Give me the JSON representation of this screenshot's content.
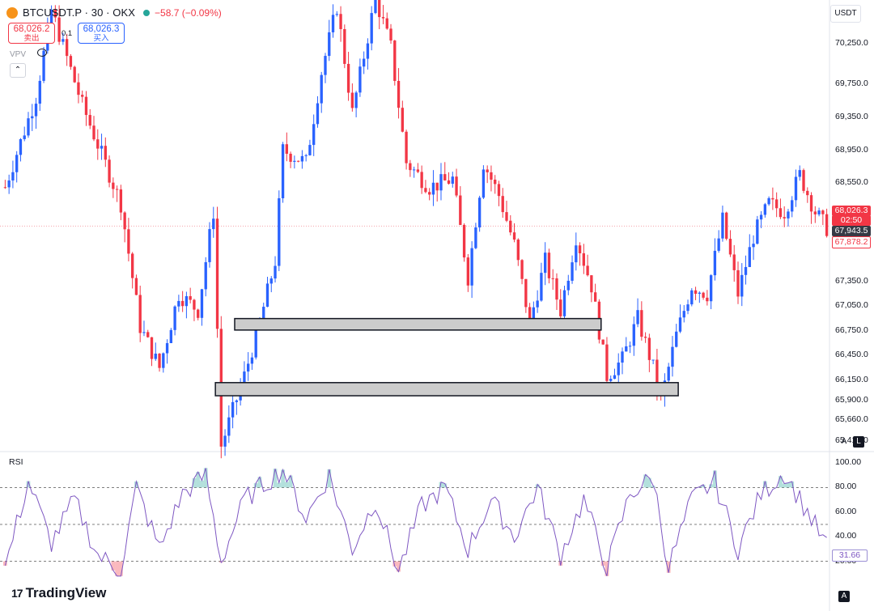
{
  "header": {
    "symbol": "BTCUSDT.P",
    "interval": "30",
    "exchange": "OKX",
    "title_text": "BTCUSDT.P · 30 · OKX",
    "change": "−58.7 (−0.09%)"
  },
  "trade": {
    "sell_price": "68,026.2",
    "sell_label": "卖出",
    "spread": "0.1",
    "buy_price": "68,026.3",
    "buy_label": "买入"
  },
  "indicator_label": "VPV",
  "currency_button": "USDT",
  "price_axis": [
    "70,250.0",
    "69,750.0",
    "69,350.0",
    "68,950.0",
    "68,550.0",
    "67,350.0",
    "67,050.0",
    "66,750.0",
    "66,450.0",
    "66,150.0",
    "65,900.0",
    "65,660.0",
    "65,410.0"
  ],
  "price_tags": {
    "last": "68,026.3",
    "countdown": "02:50",
    "mark": "67,943.5",
    "low": "67,878.2"
  },
  "rsi": {
    "title": "RSI",
    "axis": [
      "100.00",
      "80.00",
      "60.00",
      "40.00",
      "20.00"
    ],
    "value": "31.66",
    "upper_band": 80,
    "middle_band": 50,
    "lower_band": 20
  },
  "buttons": {
    "auto": "A",
    "log": "L"
  },
  "branding": {
    "logo_text": "TradingView"
  },
  "colors": {
    "up": "#2962ff",
    "down": "#f23645",
    "rsi_line": "#7e57c2",
    "zone_fill": "#cccccc"
  },
  "chart_data": {
    "type": "candlestick",
    "y_range": [
      65300,
      70700
    ],
    "price_levels": {
      "last_price": 68026.3,
      "mark_price": 67943.5
    },
    "zones": [
      {
        "from_index": 60,
        "to_index": 155,
        "price_top": 66900,
        "price_bottom": 66760
      },
      {
        "from_index": 55,
        "to_index": 175,
        "price_top": 66120,
        "price_bottom": 65960
      }
    ],
    "series_shape": [
      [
        0,
        68500
      ],
      [
        8,
        69600
      ],
      [
        12,
        70650
      ],
      [
        20,
        69500
      ],
      [
        30,
        68300
      ],
      [
        35,
        66800
      ],
      [
        40,
        66300
      ],
      [
        45,
        67200
      ],
      [
        50,
        67000
      ],
      [
        54,
        68200
      ],
      [
        56,
        65350
      ],
      [
        62,
        66200
      ],
      [
        66,
        66850
      ],
      [
        70,
        67600
      ],
      [
        72,
        68950
      ],
      [
        78,
        68800
      ],
      [
        82,
        69900
      ],
      [
        86,
        70700
      ],
      [
        90,
        69400
      ],
      [
        96,
        70800
      ],
      [
        100,
        70200
      ],
      [
        104,
        68800
      ],
      [
        110,
        68500
      ],
      [
        116,
        68600
      ],
      [
        120,
        67400
      ],
      [
        124,
        68800
      ],
      [
        128,
        68400
      ],
      [
        132,
        67800
      ],
      [
        136,
        66850
      ],
      [
        140,
        67600
      ],
      [
        144,
        67000
      ],
      [
        148,
        67900
      ],
      [
        152,
        67300
      ],
      [
        156,
        66200
      ],
      [
        160,
        66400
      ],
      [
        164,
        66900
      ],
      [
        168,
        66300
      ],
      [
        170,
        65900
      ],
      [
        174,
        66700
      ],
      [
        178,
        67300
      ],
      [
        182,
        67200
      ],
      [
        186,
        68100
      ],
      [
        190,
        67200
      ],
      [
        194,
        67900
      ],
      [
        198,
        68300
      ],
      [
        202,
        68200
      ],
      [
        206,
        68650
      ],
      [
        210,
        68200
      ],
      [
        213,
        68000
      ]
    ],
    "rsi_shape": [
      [
        0,
        15
      ],
      [
        6,
        85
      ],
      [
        12,
        35
      ],
      [
        18,
        70
      ],
      [
        24,
        25
      ],
      [
        30,
        12
      ],
      [
        34,
        80
      ],
      [
        40,
        30
      ],
      [
        46,
        75
      ],
      [
        52,
        90
      ],
      [
        56,
        20
      ],
      [
        62,
        70
      ],
      [
        68,
        85
      ],
      [
        72,
        95
      ],
      [
        78,
        55
      ],
      [
        84,
        90
      ],
      [
        90,
        30
      ],
      [
        96,
        70
      ],
      [
        102,
        12
      ],
      [
        108,
        65
      ],
      [
        114,
        80
      ],
      [
        120,
        30
      ],
      [
        126,
        70
      ],
      [
        132,
        40
      ],
      [
        138,
        80
      ],
      [
        144,
        25
      ],
      [
        150,
        70
      ],
      [
        156,
        15
      ],
      [
        162,
        75
      ],
      [
        168,
        88
      ],
      [
        172,
        15
      ],
      [
        178,
        70
      ],
      [
        184,
        85
      ],
      [
        190,
        30
      ],
      [
        196,
        75
      ],
      [
        202,
        92
      ],
      [
        208,
        60
      ],
      [
        213,
        32
      ]
    ]
  }
}
